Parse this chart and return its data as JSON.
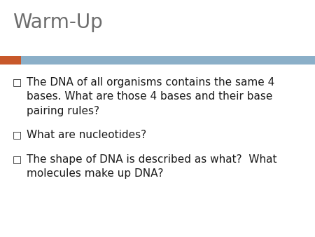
{
  "title": "Warm-Up",
  "title_color": "#6d6d6d",
  "title_fontsize": 20,
  "background_color": "#ffffff",
  "accent_bar_orange": "#C8582A",
  "accent_bar_blue": "#8BAFC8",
  "bullet_items": [
    "The DNA of all organisms contains the same 4\nbases. What are those 4 bases and their base\npairing rules?",
    "What are nucleotides?",
    "The shape of DNA is described as what?  What\nmolecules make up DNA?"
  ],
  "bullet_fontsize": 11,
  "bullet_color": "#1a1a1a",
  "bullet_symbol": "□"
}
